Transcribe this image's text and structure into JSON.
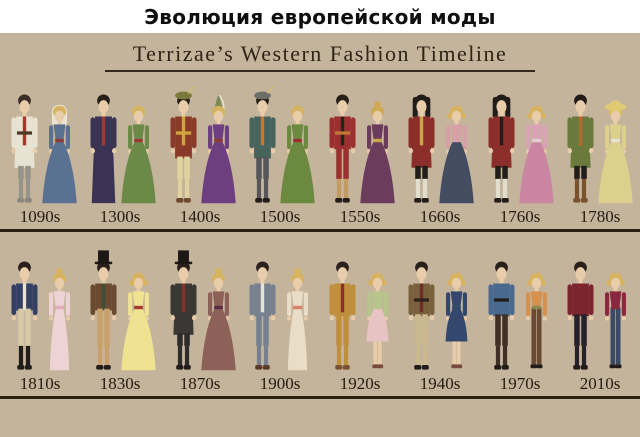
{
  "header": {
    "title": "Эволюция европейской моды"
  },
  "poster": {
    "title": "Terrizae’s Western Fashion Timeline"
  },
  "colors": {
    "background": "#c5b49c",
    "header_band": "#ffffff",
    "header_text": "#0e0e0e",
    "title_text": "#2e2517",
    "label_text": "#241c11",
    "divider": "#2a2115",
    "skin": "#e9cdaa"
  },
  "timeline": {
    "rows": [
      {
        "eras": [
          {
            "label": "1090s",
            "man": {
              "hair": "#3a2f26",
              "coat": "#e7e2d1",
              "trim": "#a8362e",
              "breech": "#96948a",
              "stocking": "#96948a",
              "shoes": "#8a887e",
              "len": "knee",
              "belt": "#4a3a28"
            },
            "woman": {
              "hair": "#d6b35e",
              "top": "#5b7191",
              "skirt": "#5b7191",
              "accent": "#8e3a3a",
              "shape": "gown",
              "veil": "#e9e3d3"
            }
          },
          {
            "label": "1300s",
            "man": {
              "hair": "#262019",
              "coat": "#3b3354",
              "trim": "#9c3a33",
              "len": "robe"
            },
            "woman": {
              "hair": "#d6b35e",
              "top": "#6c8a47",
              "skirt": "#6c8a47",
              "accent": "#9c3a33",
              "shape": "gown"
            }
          },
          {
            "label": "1400s",
            "man": {
              "hair": "#262019",
              "coat": "#8a3a28",
              "trim": "#cfa63c",
              "breech": "#e0d3a0",
              "stocking": "#e0d3a0",
              "shoes": "#6b4a2f",
              "len": "thigh",
              "hat": "cap",
              "hat_color": "#7a7a3a",
              "belt": "#cfa63c"
            },
            "woman": {
              "hair": "#d6b35e",
              "top": "#6e3f80",
              "skirt": "#6e3f80",
              "accent": "#8e3a3a",
              "shape": "gown",
              "hat": "hennin",
              "hat_color": "#7d8a57"
            }
          },
          {
            "label": "1500s",
            "man": {
              "hair": "#262019",
              "coat": "#46635c",
              "trim": "#c07a35",
              "breech": "#55555a",
              "stocking": "#55555a",
              "shoes": "#221d18",
              "len": "thigh",
              "hat": "cap",
              "hat_color": "#6e6e68"
            },
            "woman": {
              "hair": "#d6b35e",
              "top": "#6c8a3f",
              "skirt": "#6c8a3f",
              "accent": "#9c3030",
              "shape": "gown"
            }
          },
          {
            "label": "1550s",
            "man": {
              "hair": "#262019",
              "coat": "#9c3030",
              "trim": "#2b2219",
              "breech": "#9c3030",
              "stocking": "#c29a62",
              "shoes": "#221d18",
              "len": "hip",
              "belt": "#c07a35"
            },
            "woman": {
              "hair": "#d0a955",
              "top": "#6b3c5c",
              "skirt": "#6b3c5c",
              "accent": "#c9a84c",
              "shape": "gown",
              "bun": true
            }
          },
          {
            "label": "1660s",
            "man": {
              "hair": "#221c19",
              "hair_len": "long",
              "coat": "#8c2f2b",
              "trim": "#c9a84c",
              "breech": "#221d18",
              "stocking": "#e3ddcd",
              "shoes": "#221d18",
              "len": "knee"
            },
            "woman": {
              "hair": "#d6b35e",
              "top": "#d5a0a6",
              "skirt": "#434c60",
              "accent": "#d5a0a6",
              "shape": "gown",
              "curly": true
            }
          },
          {
            "label": "1760s",
            "man": {
              "hair": "#221c19",
              "hair_len": "long",
              "coat": "#8c2f2b",
              "trim": "#221d18",
              "breech": "#221d18",
              "stocking": "#e3ddcd",
              "shoes": "#221d18",
              "len": "knee"
            },
            "woman": {
              "hair": "#d6b35e",
              "top": "#d8a3b4",
              "skirt": "#ca85a3",
              "accent": "#e5cdd6",
              "shape": "gown",
              "curly": true
            }
          },
          {
            "label": "1780s",
            "man": {
              "hair": "#221c19",
              "coat": "#6a7a3c",
              "trim": "#c4622e",
              "breech": "#221d18",
              "stocking": "#7a5230",
              "shoes": "#7a5230",
              "len": "knee"
            },
            "woman": {
              "hair": "#ddc15e",
              "top": "#ddd08d",
              "skirt": "#ddd08d",
              "accent": "#eae3d0",
              "shape": "gown",
              "hat": "wide",
              "hat_color": "#e0ca74"
            }
          }
        ]
      },
      {
        "eras": [
          {
            "label": "1810s",
            "man": {
              "hair": "#2a211c",
              "coat": "#333f63",
              "trim": "#e7e2d1",
              "breech": "#d6c9a5",
              "stocking": "#221d18",
              "shoes": "#221d18",
              "len": "waist"
            },
            "woman": {
              "hair": "#d6b35e",
              "top": "#eed3d4",
              "skirt": "#eed3d4",
              "accent": "#e0aeb8",
              "shape": "gown",
              "slim": true,
              "bun": true
            }
          },
          {
            "label": "1830s",
            "man": {
              "hair": "#2a211c",
              "hat": "tophat",
              "coat": "#6a4a30",
              "trim": "#3c5038",
              "breech": "#c7a06a",
              "stocking": "#c7a06a",
              "shoes": "#221d18",
              "len": "waist"
            },
            "woman": {
              "hair": "#d6b35e",
              "top": "#efe392",
              "skirt": "#efe392",
              "accent": "#a83a30",
              "shape": "gown",
              "curly": true
            }
          },
          {
            "label": "1870s",
            "man": {
              "hair": "#2a211c",
              "hat": "tophat",
              "coat": "#3a3834",
              "trim": "#8c2f2b",
              "breech": "#2e2c2a",
              "stocking": "#2e2c2a",
              "shoes": "#221d18",
              "len": "knee"
            },
            "woman": {
              "hair": "#d6b35e",
              "top": "#8d6058",
              "skirt": "#8d6058",
              "accent": "#5a2e40",
              "shape": "gown",
              "bun": true
            }
          },
          {
            "label": "1900s",
            "man": {
              "hair": "#2a211c",
              "coat": "#76808e",
              "trim": "#e7e2d1",
              "breech": "#76808e",
              "stocking": "#76808e",
              "shoes": "#5a3c28",
              "len": "hip"
            },
            "woman": {
              "hair": "#d6b35e",
              "top": "#e9ddc8",
              "skirt": "#e9ddc8",
              "accent": "#d97f6a",
              "shape": "gown",
              "slim": true,
              "bun": true
            }
          },
          {
            "label": "1920s",
            "man": {
              "hair": "#2a211c",
              "coat": "#c08f3c",
              "trim": "#8c2f2b",
              "breech": "#c08f3c",
              "stocking": "#c08f3c",
              "shoes": "#7a5230",
              "len": "hip"
            },
            "woman": {
              "hair": "#d6b35e",
              "top": "#b5c58c",
              "skirt": "#e7c3c3",
              "accent": "#b5c58c",
              "shape": "knee",
              "curly": true
            }
          },
          {
            "label": "1940s",
            "man": {
              "hair": "#2a211c",
              "coat": "#79603d",
              "trim": "#6e2e28",
              "breech": "#c9b98d",
              "stocking": "#c9b98d",
              "shoes": "#221d18",
              "len": "hip",
              "belt": "#2e241c"
            },
            "woman": {
              "hair": "#d6b35e",
              "top": "#34486e",
              "skirt": "#34486e",
              "accent": "#34486e",
              "shape": "knee",
              "curly": true
            }
          },
          {
            "label": "1970s",
            "man": {
              "hair": "#2a211c",
              "coat": "#49698f",
              "breech": "#3f2f24",
              "stocking": "#3f2f24",
              "shoes": "#221d18",
              "len": "hip",
              "belt": "#221d18"
            },
            "woman": {
              "hair": "#d6b35e",
              "top": "#d4924e",
              "skirt": "#6b4a33",
              "accent": "#8a8a50",
              "shape": "pants",
              "curly": true
            }
          },
          {
            "label": "2010s",
            "man": {
              "hair": "#2a211c",
              "coat": "#7c2430",
              "breech": "#26222a",
              "stocking": "#26222a",
              "shoes": "#221d18",
              "len": "hip"
            },
            "woman": {
              "hair": "#d6b35e",
              "top": "#8c2740",
              "skirt": "#3c4a66",
              "accent": "#8c2740",
              "shape": "pants",
              "curly": true
            }
          }
        ]
      }
    ]
  }
}
